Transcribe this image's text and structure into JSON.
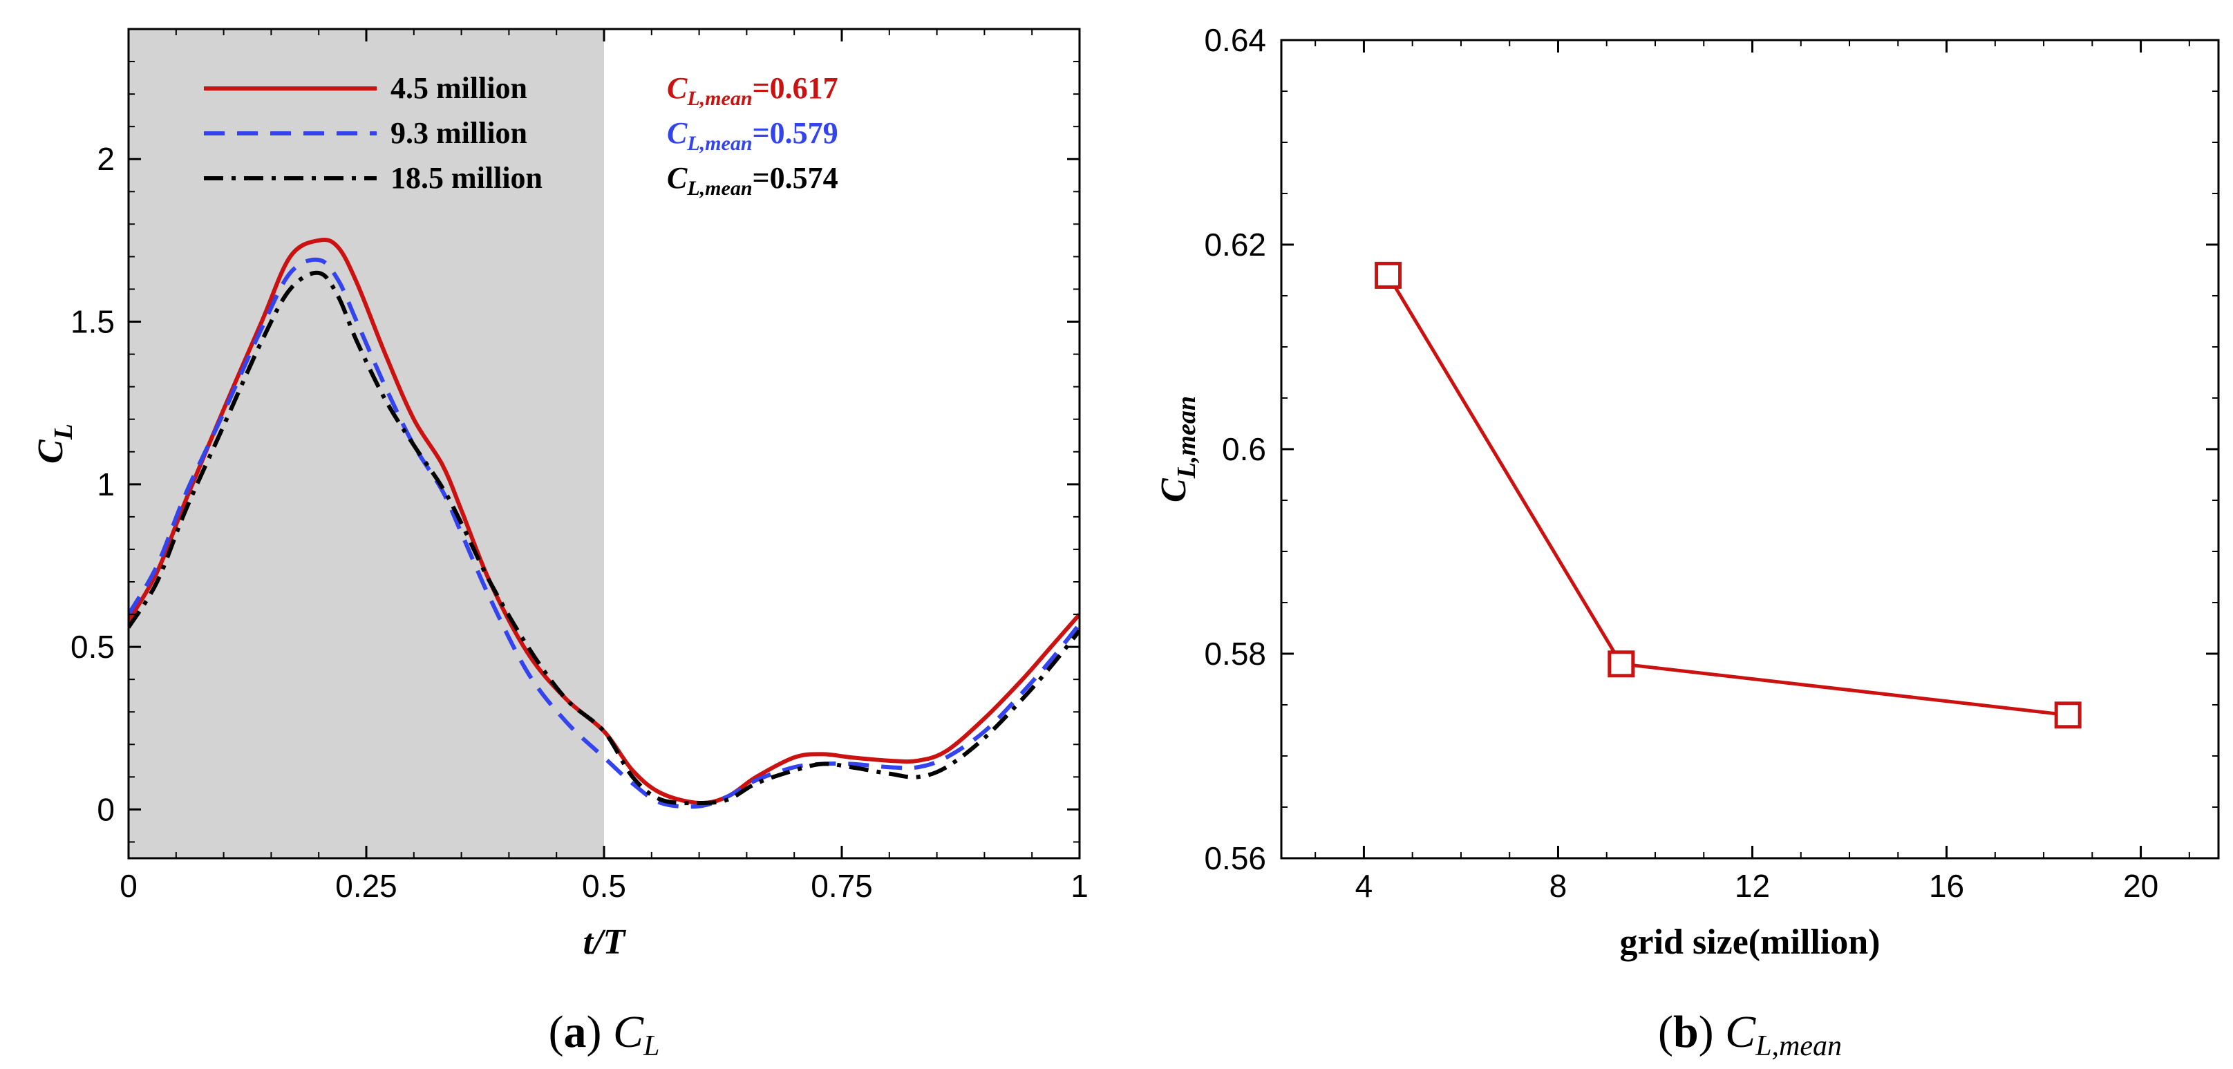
{
  "chart_data": [
    {
      "type": "line",
      "panel_caption": {
        "label": "a",
        "text": "C",
        "sub": "L"
      },
      "xlabel": "t/T",
      "ylabel": {
        "main": "C",
        "sub": "L"
      },
      "xlim": [
        0,
        1
      ],
      "ylim": [
        -0.15,
        2.4
      ],
      "xticks": [
        0,
        0.25,
        0.5,
        0.75,
        1
      ],
      "xtick_labels": [
        "0",
        "0.25",
        "0.5",
        "0.75",
        "1"
      ],
      "yticks": [
        0,
        0.5,
        1,
        1.5,
        2
      ],
      "ytick_labels": [
        "0",
        "0.5",
        "1",
        "1.5",
        "2"
      ],
      "shaded_region": {
        "x": [
          0,
          0.5
        ],
        "color": "#d3d3d3"
      },
      "series": [
        {
          "name": "4.5 million",
          "color": "#cc1111",
          "dash": "solid",
          "x": [
            0,
            0.03,
            0.06,
            0.1,
            0.14,
            0.17,
            0.2,
            0.22,
            0.24,
            0.27,
            0.3,
            0.33,
            0.35,
            0.38,
            0.42,
            0.46,
            0.5,
            0.53,
            0.56,
            0.6,
            0.63,
            0.66,
            0.7,
            0.73,
            0.76,
            0.8,
            0.83,
            0.86,
            0.9,
            0.94,
            0.97,
            1
          ],
          "y": [
            0.58,
            0.73,
            0.95,
            1.23,
            1.5,
            1.7,
            1.75,
            1.73,
            1.62,
            1.4,
            1.2,
            1.06,
            0.92,
            0.7,
            0.48,
            0.34,
            0.24,
            0.12,
            0.05,
            0.02,
            0.04,
            0.1,
            0.16,
            0.17,
            0.16,
            0.15,
            0.15,
            0.18,
            0.28,
            0.4,
            0.5,
            0.6
          ]
        },
        {
          "name": "9.3 million",
          "color": "#3344ee",
          "dash": "dashed",
          "x": [
            0,
            0.03,
            0.06,
            0.1,
            0.14,
            0.17,
            0.2,
            0.22,
            0.24,
            0.27,
            0.3,
            0.33,
            0.35,
            0.38,
            0.42,
            0.46,
            0.5,
            0.53,
            0.56,
            0.6,
            0.63,
            0.66,
            0.7,
            0.73,
            0.76,
            0.8,
            0.83,
            0.86,
            0.9,
            0.94,
            0.97,
            1
          ],
          "y": [
            0.6,
            0.75,
            0.97,
            1.22,
            1.48,
            1.65,
            1.69,
            1.63,
            1.5,
            1.3,
            1.12,
            0.98,
            0.85,
            0.65,
            0.42,
            0.27,
            0.16,
            0.08,
            0.02,
            0.01,
            0.04,
            0.09,
            0.13,
            0.14,
            0.14,
            0.13,
            0.13,
            0.16,
            0.24,
            0.36,
            0.46,
            0.57
          ]
        },
        {
          "name": "18.5 million",
          "color": "#000000",
          "dash": "dashdot",
          "x": [
            0,
            0.03,
            0.06,
            0.1,
            0.14,
            0.17,
            0.2,
            0.22,
            0.24,
            0.27,
            0.3,
            0.33,
            0.35,
            0.38,
            0.42,
            0.46,
            0.5,
            0.53,
            0.56,
            0.6,
            0.63,
            0.66,
            0.7,
            0.73,
            0.76,
            0.8,
            0.83,
            0.86,
            0.9,
            0.94,
            0.97,
            1
          ],
          "y": [
            0.56,
            0.7,
            0.92,
            1.18,
            1.44,
            1.6,
            1.65,
            1.58,
            1.44,
            1.26,
            1.12,
            0.99,
            0.88,
            0.7,
            0.5,
            0.34,
            0.24,
            0.1,
            0.03,
            0.02,
            0.03,
            0.08,
            0.12,
            0.14,
            0.13,
            0.11,
            0.1,
            0.13,
            0.22,
            0.34,
            0.44,
            0.55
          ]
        }
      ],
      "annotations": [
        {
          "main": "C",
          "sub": "L,mean",
          "value": "=0.617",
          "color": "#cc1111"
        },
        {
          "main": "C",
          "sub": "L,mean",
          "value": "=0.579",
          "color": "#3344ee"
        },
        {
          "main": "C",
          "sub": "L,mean",
          "value": "=0.574",
          "color": "#000000"
        }
      ]
    },
    {
      "type": "line",
      "panel_caption": {
        "label": "b",
        "text": "C",
        "sub": "L,mean"
      },
      "xlabel": "grid size(million)",
      "ylabel": {
        "main": "C",
        "sub": "L,mean"
      },
      "xlim": [
        2.3,
        21.6
      ],
      "ylim": [
        0.56,
        0.64
      ],
      "xticks": [
        4,
        8,
        12,
        16,
        20
      ],
      "xtick_labels": [
        "4",
        "8",
        "12",
        "16",
        "20"
      ],
      "yticks": [
        0.56,
        0.58,
        0.6,
        0.62,
        0.64
      ],
      "ytick_labels": [
        "0.56",
        "0.58",
        "0.6",
        "0.62",
        "0.64"
      ],
      "series": [
        {
          "color": "#cc1111",
          "marker": "square",
          "x": [
            4.5,
            9.3,
            18.5
          ],
          "y": [
            0.617,
            0.579,
            0.574
          ]
        }
      ]
    }
  ]
}
